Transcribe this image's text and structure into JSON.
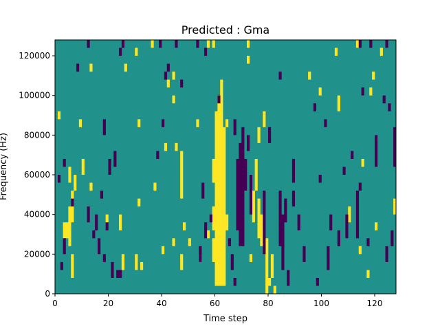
{
  "chart_data": {
    "type": "heatmap",
    "title": "Predicted : Gma",
    "xlabel": "Time step",
    "ylabel": "Frequency (Hz)",
    "xlim": [
      0,
      128
    ],
    "ylim": [
      0,
      128000
    ],
    "n_cols": 128,
    "n_rows": 32,
    "row_height_hz": 4000,
    "xticks": [
      "0",
      "20",
      "40",
      "60",
      "80",
      "100",
      "120"
    ],
    "xtick_values": [
      0,
      20,
      40,
      60,
      80,
      100,
      120
    ],
    "yticks": [
      "0",
      "20000",
      "40000",
      "60000",
      "80000",
      "100000",
      "120000"
    ],
    "ytick_values": [
      0,
      20000,
      40000,
      60000,
      80000,
      100000,
      120000
    ],
    "values_legend": {
      "low": -1,
      "background": 0,
      "high": 1
    },
    "colors": {
      "low": "#440154",
      "background": "#21918c",
      "high": "#fde725"
    },
    "high_runs": [
      [
        60,
        1,
        22
      ],
      [
        61,
        1,
        24
      ],
      [
        62,
        1,
        26
      ],
      [
        63,
        1,
        20
      ],
      [
        59,
        4,
        6
      ],
      [
        59,
        8,
        10
      ],
      [
        59,
        14,
        16
      ],
      [
        64,
        8,
        9
      ],
      [
        5,
        6,
        10
      ],
      [
        4,
        7,
        8
      ],
      [
        3,
        7,
        8
      ],
      [
        6,
        2,
        4
      ],
      [
        6,
        9,
        12
      ],
      [
        5,
        14,
        15
      ],
      [
        1,
        22,
        22
      ],
      [
        9,
        21,
        21
      ],
      [
        13,
        28,
        28
      ],
      [
        30,
        30,
        30
      ],
      [
        36,
        31,
        31
      ],
      [
        44,
        27,
        27
      ],
      [
        44,
        24,
        24
      ],
      [
        41,
        18,
        18
      ],
      [
        45,
        18,
        18
      ],
      [
        47,
        12,
        15
      ],
      [
        31,
        21,
        21
      ],
      [
        53,
        21,
        21
      ],
      [
        57,
        31,
        31
      ],
      [
        59,
        31,
        31
      ],
      [
        72,
        31,
        31
      ],
      [
        72,
        29,
        29
      ],
      [
        78,
        21,
        22
      ],
      [
        76,
        19,
        20
      ],
      [
        75,
        13,
        16
      ],
      [
        76,
        7,
        11
      ],
      [
        79,
        0,
        6
      ],
      [
        80,
        1,
        1
      ],
      [
        81,
        2,
        4
      ],
      [
        95,
        27,
        27
      ],
      [
        99,
        25,
        25
      ],
      [
        105,
        30,
        30
      ],
      [
        106,
        23,
        24
      ],
      [
        110,
        9,
        10
      ],
      [
        114,
        5,
        5
      ],
      [
        117,
        2,
        2
      ],
      [
        113,
        31,
        31
      ],
      [
        122,
        30,
        30
      ],
      [
        118,
        25,
        25
      ],
      [
        119,
        27,
        27
      ],
      [
        115,
        16,
        16
      ],
      [
        120,
        8,
        8
      ],
      [
        127,
        10,
        11
      ],
      [
        10,
        15,
        16
      ],
      [
        7,
        13,
        14
      ],
      [
        13,
        13,
        13
      ],
      [
        19,
        9,
        9
      ],
      [
        24,
        8,
        9
      ],
      [
        25,
        3,
        4
      ],
      [
        30,
        3,
        4
      ],
      [
        32,
        3,
        3
      ],
      [
        31,
        11,
        11
      ],
      [
        37,
        13,
        13
      ],
      [
        40,
        5,
        5
      ],
      [
        44,
        6,
        6
      ],
      [
        48,
        8,
        8
      ],
      [
        47,
        3,
        4
      ],
      [
        50,
        6,
        6
      ],
      [
        54,
        4,
        4
      ],
      [
        47,
        16,
        17
      ],
      [
        74,
        9,
        12
      ],
      [
        77,
        6,
        9
      ],
      [
        82,
        0,
        0
      ],
      [
        73,
        4,
        4
      ],
      [
        64,
        21,
        21
      ],
      [
        57,
        7,
        7
      ],
      [
        26,
        28,
        28
      ],
      [
        42,
        26,
        26
      ]
    ],
    "low_runs": [
      [
        68,
        8,
        16
      ],
      [
        69,
        6,
        18
      ],
      [
        70,
        6,
        20
      ],
      [
        71,
        13,
        16
      ],
      [
        67,
        1,
        1
      ],
      [
        2,
        3,
        3
      ],
      [
        3,
        5,
        6
      ],
      [
        1,
        14,
        14
      ],
      [
        6,
        11,
        11
      ],
      [
        12,
        9,
        10
      ],
      [
        14,
        7,
        7
      ],
      [
        16,
        5,
        6
      ],
      [
        18,
        4,
        4
      ],
      [
        19,
        8,
        8
      ],
      [
        17,
        12,
        12
      ],
      [
        20,
        15,
        16
      ],
      [
        22,
        16,
        17
      ],
      [
        15,
        8,
        9
      ],
      [
        21,
        2,
        3
      ],
      [
        23,
        2,
        2
      ],
      [
        24,
        2,
        2
      ],
      [
        18,
        20,
        21
      ],
      [
        12,
        31,
        31
      ],
      [
        25,
        31,
        31
      ],
      [
        24,
        30,
        30
      ],
      [
        8,
        28,
        28
      ],
      [
        39,
        31,
        31
      ],
      [
        45,
        31,
        31
      ],
      [
        53,
        31,
        31
      ],
      [
        56,
        30,
        30
      ],
      [
        61,
        24,
        24
      ],
      [
        67,
        20,
        21
      ],
      [
        80,
        19,
        20
      ],
      [
        84,
        27,
        27
      ],
      [
        89,
        11,
        12
      ],
      [
        89,
        14,
        16
      ],
      [
        93,
        4,
        5
      ],
      [
        97,
        23,
        23
      ],
      [
        98,
        1,
        1
      ],
      [
        99,
        14,
        14
      ],
      [
        102,
        3,
        5
      ],
      [
        103,
        8,
        9
      ],
      [
        106,
        6,
        7
      ],
      [
        109,
        7,
        9
      ],
      [
        113,
        7,
        12
      ],
      [
        114,
        13,
        13
      ],
      [
        117,
        6,
        6
      ],
      [
        120,
        16,
        19
      ],
      [
        124,
        4,
        5
      ],
      [
        125,
        23,
        23
      ],
      [
        127,
        16,
        20
      ],
      [
        126,
        6,
        7
      ],
      [
        114,
        31,
        31
      ],
      [
        115,
        25,
        25
      ],
      [
        118,
        31,
        31
      ],
      [
        101,
        21,
        21
      ],
      [
        124,
        31,
        31
      ],
      [
        38,
        17,
        17
      ],
      [
        40,
        21,
        21
      ],
      [
        41,
        27,
        27
      ],
      [
        42,
        28,
        28
      ],
      [
        47,
        26,
        26
      ],
      [
        55,
        12,
        13
      ],
      [
        56,
        7,
        8
      ],
      [
        58,
        9,
        9
      ],
      [
        54,
        4,
        5
      ],
      [
        73,
        10,
        14
      ],
      [
        78,
        5,
        12
      ],
      [
        84,
        6,
        12
      ],
      [
        85,
        3,
        9
      ],
      [
        86,
        9,
        11
      ],
      [
        87,
        1,
        2
      ],
      [
        72,
        18,
        19
      ],
      [
        66,
        3,
        4
      ],
      [
        65,
        6,
        6
      ],
      [
        91,
        8,
        9
      ],
      [
        108,
        15,
        15
      ],
      [
        111,
        17,
        17
      ],
      [
        123,
        24,
        24
      ],
      [
        3,
        16,
        16
      ]
    ]
  }
}
